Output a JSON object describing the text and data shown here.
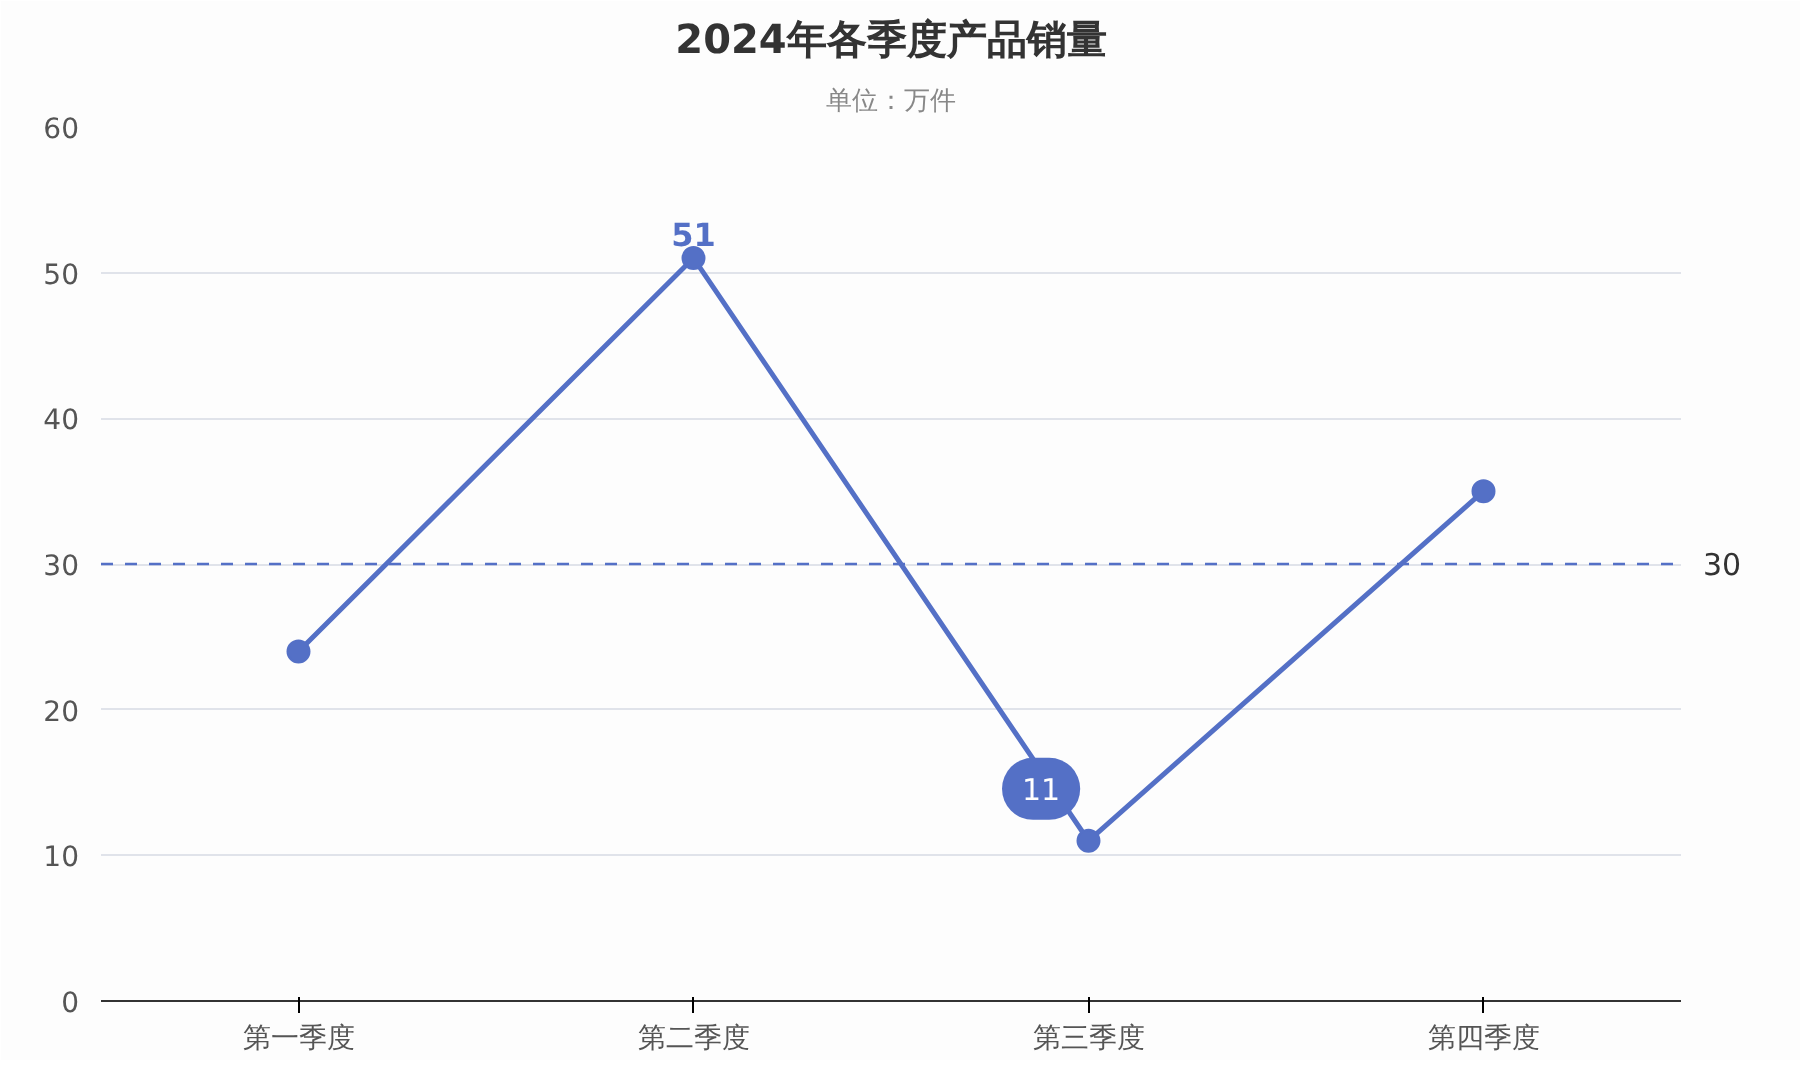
{
  "chart_data": {
    "type": "line",
    "title": "2024年各季度产品销量",
    "subtitle": "单位：万件",
    "categories": [
      "第一季度",
      "第二季度",
      "第三季度",
      "第四季度"
    ],
    "series": [
      {
        "color": "#5470c6",
        "values": [
          24,
          51,
          11,
          35
        ],
        "value_labels": [
          null,
          "51",
          "11",
          null
        ]
      }
    ],
    "ylim": [
      0,
      60
    ],
    "yticks": [
      0,
      10,
      20,
      30,
      40,
      50,
      60
    ],
    "grid": "y",
    "marker": "circle",
    "line_style": "solid",
    "ref_lines": [
      {
        "axis": "y",
        "value": 30,
        "label": "30",
        "line_style": "dashed",
        "color": "#5470c6"
      }
    ]
  }
}
